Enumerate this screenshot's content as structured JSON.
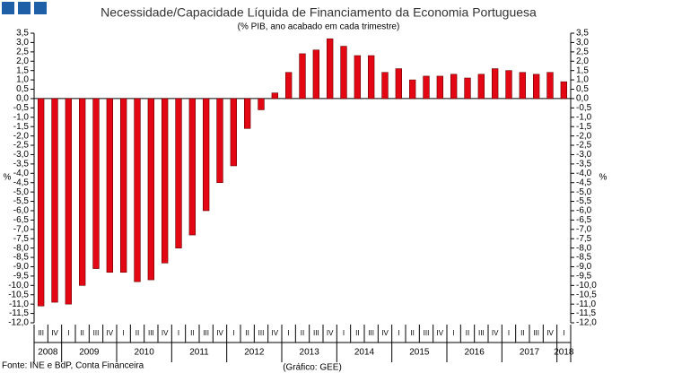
{
  "chart_data": {
    "type": "bar",
    "title": "Necessidade/Capacidade Líquida de Financiamento da Economia Portuguesa",
    "subtitle": "(% PIB, ano acabado em cada trimestre)",
    "y_label": "%",
    "y2_label": "%",
    "source": "Fonte: INE e BdP, Conta Financeira",
    "credit": "(Gráfico: GEE)",
    "color": "#e30613",
    "categories": [
      "III",
      "IV",
      "I",
      "II",
      "III",
      "IV",
      "I",
      "II",
      "III",
      "IV",
      "I",
      "II",
      "III",
      "IV",
      "I",
      "II",
      "III",
      "IV",
      "I",
      "II",
      "III",
      "IV",
      "I",
      "II",
      "III",
      "IV",
      "I",
      "II",
      "III",
      "IV",
      "I",
      "II",
      "III",
      "IV",
      "I",
      "II",
      "III",
      "IV",
      "I"
    ],
    "years": [
      "2008",
      "2009",
      "2010",
      "2011",
      "2012",
      "2013",
      "2014",
      "2015",
      "2016",
      "2017",
      "2018"
    ],
    "values": [
      -11.1,
      -10.9,
      -11.0,
      -10.0,
      -9.1,
      -9.3,
      -9.3,
      -9.8,
      -9.7,
      -8.8,
      -8.0,
      -7.3,
      -6.0,
      -4.5,
      -3.6,
      -1.6,
      -0.6,
      0.3,
      1.4,
      2.4,
      2.6,
      3.2,
      2.8,
      2.3,
      2.3,
      1.4,
      1.6,
      1.0,
      1.2,
      1.2,
      1.3,
      1.1,
      1.3,
      1.6,
      1.5,
      1.4,
      1.3,
      1.4,
      0.9
    ],
    "ylim": [
      -12.0,
      3.5
    ],
    "yticks": [
      {
        "value": 3.5,
        "label": "3,5"
      },
      {
        "value": 3.0,
        "label": "3,0"
      },
      {
        "value": 2.5,
        "label": "2,5"
      },
      {
        "value": 2.0,
        "label": "2,0"
      },
      {
        "value": 1.5,
        "label": "1,5"
      },
      {
        "value": 1.0,
        "label": "1,0"
      },
      {
        "value": 0.5,
        "label": "0,5"
      },
      {
        "value": 0,
        "label": "0,0"
      },
      {
        "value": -0.5,
        "label": "-0,5"
      },
      {
        "value": -1.0,
        "label": "-1,0"
      },
      {
        "value": -1.5,
        "label": "-1,5"
      },
      {
        "value": -2.0,
        "label": "-2,0"
      },
      {
        "value": -2.5,
        "label": "-2,5"
      },
      {
        "value": -3.0,
        "label": "-3,0"
      },
      {
        "value": -3.5,
        "label": "-3,5"
      },
      {
        "value": -4.0,
        "label": "-4,0"
      },
      {
        "value": -4.5,
        "label": "-4,5"
      },
      {
        "value": -5.0,
        "label": "-5,0"
      },
      {
        "value": -5.5,
        "label": "-5,5"
      },
      {
        "value": -6.0,
        "label": "-6,0"
      },
      {
        "value": -6.5,
        "label": "-6,5"
      },
      {
        "value": -7.0,
        "label": "-7,0"
      },
      {
        "value": -7.5,
        "label": "-7,5"
      },
      {
        "value": -8.0,
        "label": "-8,0"
      },
      {
        "value": -8.5,
        "label": "-8,5"
      },
      {
        "value": -9.0,
        "label": "-9,0"
      },
      {
        "value": -9.5,
        "label": "-9,5"
      },
      {
        "value": -10.0,
        "label": "-10,0"
      },
      {
        "value": -10.5,
        "label": "-10,5"
      },
      {
        "value": -11.0,
        "label": "-11,0"
      },
      {
        "value": -11.5,
        "label": "-11,5"
      },
      {
        "value": -12.0,
        "label": "-12,0"
      }
    ],
    "y2lim": [
      -12.0,
      3.5
    ],
    "y2ticks": [
      {
        "value": 3.5,
        "label": "3,5"
      },
      {
        "value": 3.0,
        "label": "3,0"
      },
      {
        "value": 2.5,
        "label": "2,5"
      },
      {
        "value": 2.0,
        "label": "2,0"
      },
      {
        "value": 1.5,
        "label": "1,5"
      },
      {
        "value": 1.0,
        "label": "1,0"
      },
      {
        "value": 0.5,
        "label": "0,5"
      },
      {
        "value": 0,
        "label": "0,0"
      },
      {
        "value": -0.5,
        "label": "-0,5"
      },
      {
        "value": -1.0,
        "label": "-1,0"
      },
      {
        "value": -1.5,
        "label": "-1,5"
      },
      {
        "value": -2.0,
        "label": "-2,0"
      },
      {
        "value": -2.5,
        "label": "-2,5"
      },
      {
        "value": -3.0,
        "label": "-3,0"
      },
      {
        "value": -3.5,
        "label": "-3,5"
      },
      {
        "value": -4.0,
        "label": "-4,0"
      },
      {
        "value": -4.5,
        "label": "-4,5"
      },
      {
        "value": -5.0,
        "label": "-5,0"
      },
      {
        "value": -5.5,
        "label": "-5,5"
      },
      {
        "value": -6.0,
        "label": "-6,0"
      },
      {
        "value": -6.5,
        "label": "-6,5"
      },
      {
        "value": -7.0,
        "label": "-7,0"
      },
      {
        "value": -7.5,
        "label": "-7,5"
      },
      {
        "value": -8.0,
        "label": "-8,0"
      },
      {
        "value": -8.5,
        "label": "-8,5"
      },
      {
        "value": -9.0,
        "label": "-9,0"
      },
      {
        "value": -9.5,
        "label": "-9,5"
      },
      {
        "value": -10.0,
        "label": "-10,0"
      },
      {
        "value": -10.5,
        "label": "-10,5"
      },
      {
        "value": -11.0,
        "label": "-11,0"
      },
      {
        "value": -11.5,
        "label": "-11,5"
      },
      {
        "value": -12.0,
        "label": "-12,0"
      }
    ]
  }
}
